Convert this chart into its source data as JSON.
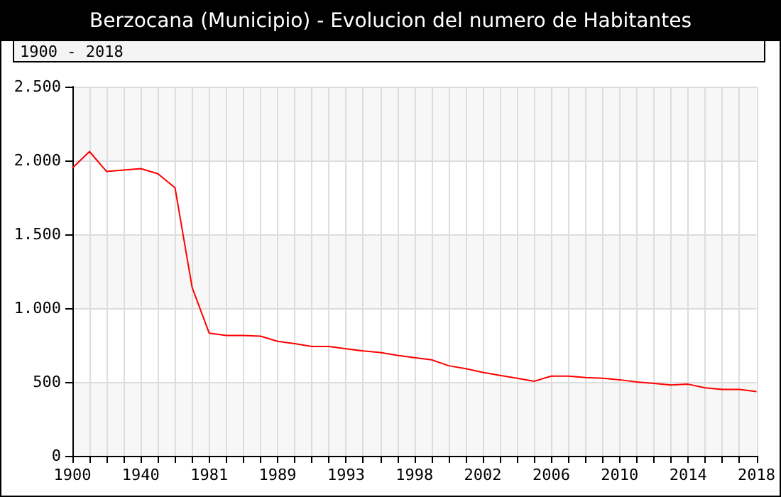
{
  "chart_data": {
    "type": "line",
    "title": "Berzocana (Municipio) - Evolucion del numero de Habitantes",
    "annotations": [
      "1900 - 2018"
    ],
    "categories": [
      "1900",
      null,
      null,
      null,
      "1940",
      null,
      null,
      null,
      "1981",
      null,
      null,
      null,
      "1989",
      null,
      null,
      null,
      "1993",
      null,
      null,
      null,
      "1998",
      null,
      null,
      null,
      "2002",
      null,
      null,
      null,
      "2006",
      null,
      null,
      null,
      "2010",
      null,
      null,
      null,
      "2014",
      null,
      null,
      null,
      "2018"
    ],
    "series": [
      {
        "color": "#ff0000",
        "values": [
          1950,
          2060,
          1925,
          1935,
          1945,
          1910,
          1815,
          1140,
          830,
          815,
          815,
          810,
          775,
          760,
          740,
          740,
          725,
          710,
          700,
          680,
          665,
          650,
          610,
          590,
          565,
          545,
          525,
          505,
          540,
          540,
          530,
          525,
          515,
          500,
          490,
          480,
          485,
          460,
          450,
          450,
          435
        ]
      }
    ],
    "ylim": [
      0,
      2500
    ],
    "yticks": [
      {
        "value": 0,
        "label": "0"
      },
      {
        "value": 500,
        "label": "500"
      },
      {
        "value": 1000,
        "label": "1.000"
      },
      {
        "value": 1500,
        "label": "1.500"
      },
      {
        "value": 2000,
        "label": "2.000"
      },
      {
        "value": 2500,
        "label": "2.500"
      }
    ],
    "grid": true,
    "marker": "none",
    "line_style": "solid"
  }
}
